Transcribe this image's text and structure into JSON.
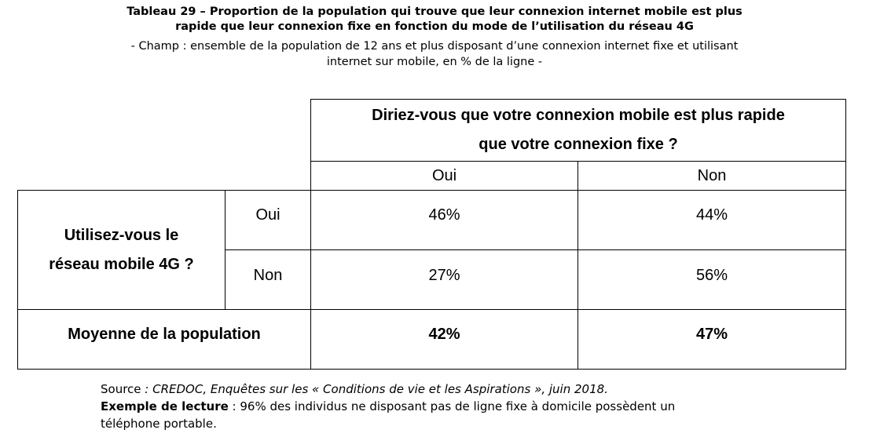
{
  "header": {
    "title_line1": "Tableau 29 – Proportion de la population qui trouve que leur connexion internet mobile est plus",
    "title_line2": "rapide que leur connexion fixe en fonction du mode de l’utilisation du réseau 4G",
    "scope_line1": "- Champ : ensemble de la population de 12 ans et plus disposant d’une connexion internet fixe et utilisant",
    "scope_line2": "internet sur mobile, en % de la ligne -"
  },
  "table": {
    "col_question_line1": "Diriez-vous que votre connexion mobile est plus rapide",
    "col_question_line2": "que votre connexion fixe ?",
    "col_oui": "Oui",
    "col_non": "Non",
    "row_question_line1": "Utilisez-vous le",
    "row_question_line2": "réseau mobile 4G ?",
    "rows": [
      {
        "label": "Oui",
        "oui": "46%",
        "non": "44%"
      },
      {
        "label": "Non",
        "oui": "27%",
        "non": "56%"
      }
    ],
    "average": {
      "label": "Moyenne de la population",
      "oui": "42%",
      "non": "47%"
    }
  },
  "footer": {
    "source_label": "Source ",
    "source_text": ": CREDOC, Enquêtes sur les « Conditions de vie et les Aspirations », juin 2018.",
    "example_label": "Exemple de lecture",
    "example_text": " : 96% des individus ne disposant pas de ligne fixe à domicile possèdent un",
    "example_text2": "téléphone portable."
  }
}
